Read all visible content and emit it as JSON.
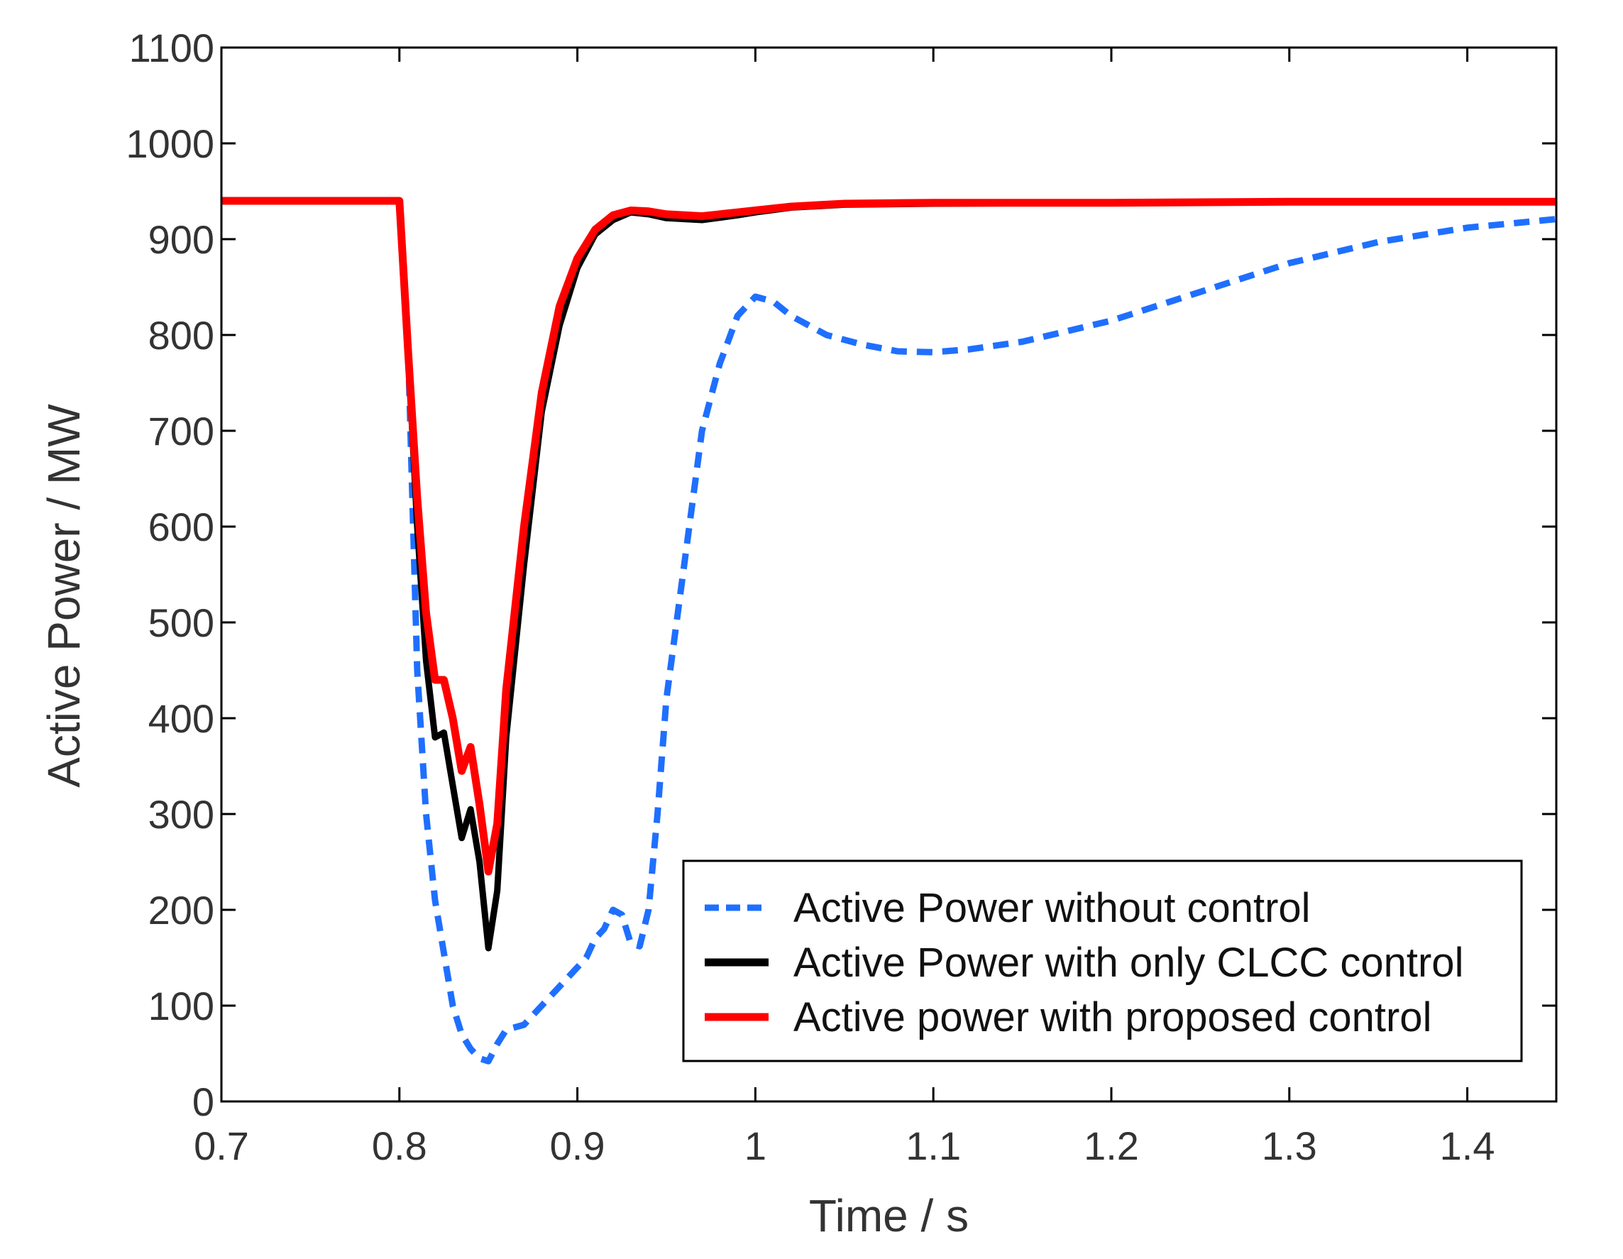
{
  "chart_data": {
    "type": "line",
    "title": "",
    "xlabel": "Time / s",
    "ylabel": "Active Power / MW",
    "xlim": [
      0.7,
      1.45
    ],
    "ylim": [
      0,
      1100
    ],
    "xticks": [
      0.7,
      0.8,
      0.9,
      1.0,
      1.1,
      1.2,
      1.3,
      1.4
    ],
    "xtick_labels": [
      "0.7",
      "0.8",
      "0.9",
      "1",
      "1.1",
      "1.2",
      "1.3",
      "1.4"
    ],
    "yticks": [
      0,
      100,
      200,
      300,
      400,
      500,
      600,
      700,
      800,
      900,
      1000,
      1100
    ],
    "ytick_labels": [
      "0",
      "100",
      "200",
      "300",
      "400",
      "500",
      "600",
      "700",
      "800",
      "900",
      "1000",
      "1100"
    ],
    "grid": false,
    "legend_position": "bottom-right",
    "series": [
      {
        "name": "Active Power without control",
        "color": "#1f6fff",
        "style": "dashed",
        "points": [
          [
            0.7,
            940
          ],
          [
            0.8,
            940
          ],
          [
            0.805,
            780
          ],
          [
            0.81,
            450
          ],
          [
            0.815,
            300
          ],
          [
            0.82,
            210
          ],
          [
            0.83,
            100
          ],
          [
            0.835,
            70
          ],
          [
            0.84,
            55
          ],
          [
            0.845,
            45
          ],
          [
            0.85,
            42
          ],
          [
            0.855,
            60
          ],
          [
            0.86,
            75
          ],
          [
            0.87,
            80
          ],
          [
            0.88,
            100
          ],
          [
            0.89,
            120
          ],
          [
            0.9,
            140
          ],
          [
            0.905,
            150
          ],
          [
            0.91,
            170
          ],
          [
            0.915,
            180
          ],
          [
            0.92,
            200
          ],
          [
            0.925,
            195
          ],
          [
            0.93,
            165
          ],
          [
            0.935,
            162
          ],
          [
            0.94,
            200
          ],
          [
            0.945,
            300
          ],
          [
            0.95,
            420
          ],
          [
            0.96,
            560
          ],
          [
            0.97,
            700
          ],
          [
            0.98,
            770
          ],
          [
            0.99,
            820
          ],
          [
            1.0,
            840
          ],
          [
            1.01,
            835
          ],
          [
            1.02,
            820
          ],
          [
            1.04,
            800
          ],
          [
            1.06,
            790
          ],
          [
            1.08,
            783
          ],
          [
            1.1,
            782
          ],
          [
            1.12,
            785
          ],
          [
            1.15,
            793
          ],
          [
            1.2,
            815
          ],
          [
            1.25,
            845
          ],
          [
            1.3,
            875
          ],
          [
            1.35,
            897
          ],
          [
            1.4,
            912
          ],
          [
            1.45,
            921
          ]
        ]
      },
      {
        "name": "Active Power with only CLCC control",
        "color": "#000000",
        "style": "solid",
        "points": [
          [
            0.7,
            940
          ],
          [
            0.8,
            940
          ],
          [
            0.805,
            780
          ],
          [
            0.81,
            600
          ],
          [
            0.815,
            460
          ],
          [
            0.82,
            380
          ],
          [
            0.825,
            385
          ],
          [
            0.83,
            330
          ],
          [
            0.835,
            275
          ],
          [
            0.84,
            305
          ],
          [
            0.845,
            250
          ],
          [
            0.85,
            160
          ],
          [
            0.855,
            220
          ],
          [
            0.86,
            380
          ],
          [
            0.87,
            560
          ],
          [
            0.88,
            720
          ],
          [
            0.89,
            810
          ],
          [
            0.9,
            870
          ],
          [
            0.91,
            905
          ],
          [
            0.92,
            920
          ],
          [
            0.93,
            928
          ],
          [
            0.94,
            926
          ],
          [
            0.95,
            922
          ],
          [
            0.97,
            920
          ],
          [
            0.99,
            925
          ],
          [
            1.0,
            928
          ],
          [
            1.02,
            933
          ],
          [
            1.05,
            936
          ],
          [
            1.1,
            937
          ],
          [
            1.2,
            938
          ],
          [
            1.3,
            939
          ],
          [
            1.45,
            939
          ]
        ]
      },
      {
        "name": "Active power with proposed control",
        "color": "#ff0000",
        "style": "solid",
        "points": [
          [
            0.7,
            940
          ],
          [
            0.8,
            940
          ],
          [
            0.805,
            780
          ],
          [
            0.81,
            630
          ],
          [
            0.815,
            510
          ],
          [
            0.82,
            440
          ],
          [
            0.825,
            440
          ],
          [
            0.83,
            400
          ],
          [
            0.835,
            345
          ],
          [
            0.84,
            370
          ],
          [
            0.845,
            310
          ],
          [
            0.85,
            240
          ],
          [
            0.855,
            290
          ],
          [
            0.86,
            430
          ],
          [
            0.87,
            600
          ],
          [
            0.88,
            740
          ],
          [
            0.89,
            830
          ],
          [
            0.9,
            880
          ],
          [
            0.91,
            910
          ],
          [
            0.92,
            925
          ],
          [
            0.93,
            930
          ],
          [
            0.94,
            929
          ],
          [
            0.95,
            926
          ],
          [
            0.97,
            924
          ],
          [
            0.99,
            928
          ],
          [
            1.0,
            930
          ],
          [
            1.02,
            934
          ],
          [
            1.05,
            937
          ],
          [
            1.1,
            938
          ],
          [
            1.2,
            938
          ],
          [
            1.3,
            939
          ],
          [
            1.45,
            939
          ]
        ]
      }
    ]
  }
}
